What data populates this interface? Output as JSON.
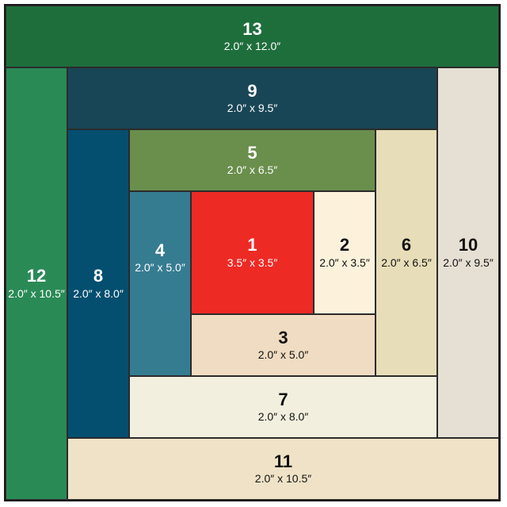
{
  "diagram": {
    "pieces": [
      {
        "number": "13",
        "size": "2.0″ x 12.0″",
        "color": "#1e6e3c"
      },
      {
        "number": "12",
        "size": "2.0″ x 10.5″",
        "color": "#2a8a56"
      },
      {
        "number": "11",
        "size": "2.0″ x 10.5″",
        "color": "#efe2c7"
      },
      {
        "number": "10",
        "size": "2.0″ x 9.5″",
        "color": "#e6e0d4"
      },
      {
        "number": "9",
        "size": "2.0″ x 9.5″",
        "color": "#194656"
      },
      {
        "number": "8",
        "size": "2.0″ x 8.0″",
        "color": "#044f70"
      },
      {
        "number": "7",
        "size": "2.0″ x 8.0″",
        "color": "#f2efde"
      },
      {
        "number": "6",
        "size": "2.0″ x 6.5″",
        "color": "#e7ddb8"
      },
      {
        "number": "5",
        "size": "2.0″ x 6.5″",
        "color": "#6a8e4c"
      },
      {
        "number": "4",
        "size": "2.0″ x 5.0″",
        "color": "#367c91"
      },
      {
        "number": "3",
        "size": "2.0″ x 5.0″",
        "color": "#f0dcc2"
      },
      {
        "number": "2",
        "size": "2.0″ x 3.5″",
        "color": "#fcf2dc"
      },
      {
        "number": "1",
        "size": "3.5″ x 3.5″",
        "color": "#ee2a24"
      }
    ]
  }
}
